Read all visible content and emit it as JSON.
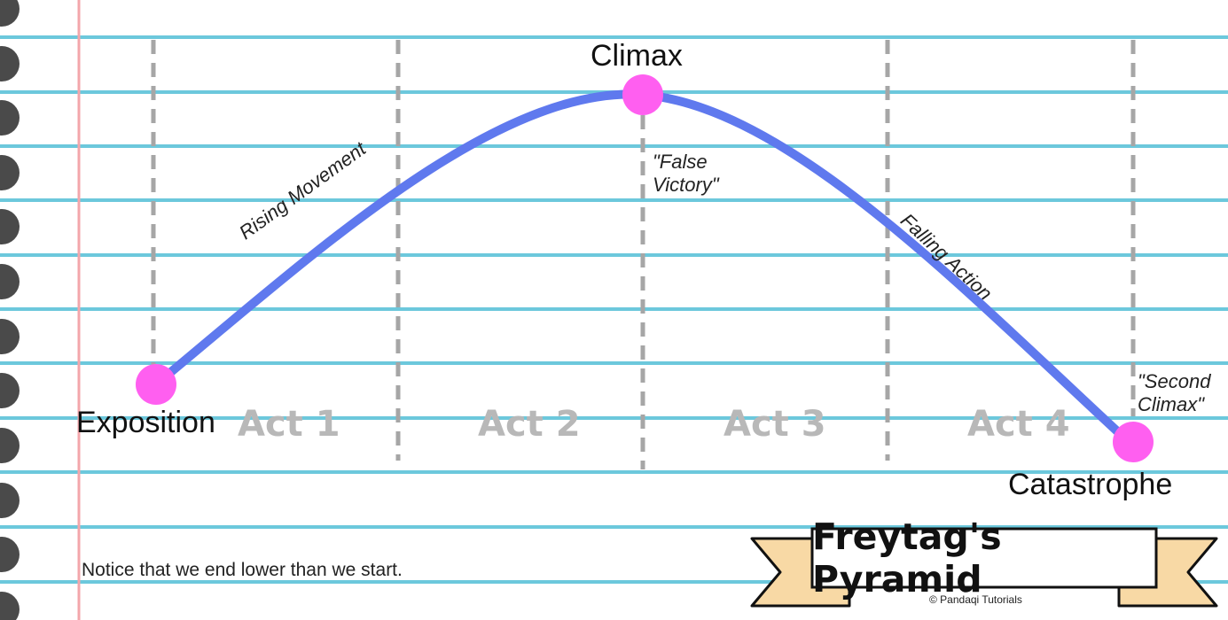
{
  "points": {
    "exposition": "Exposition",
    "climax": "Climax",
    "catastrophe": "Catastrophe"
  },
  "notes": {
    "false_victory": [
      "\"False",
      "Victory\""
    ],
    "second_climax": [
      "\"Second",
      "Climax\""
    ]
  },
  "curve_labels": {
    "rising": "Rising Movement",
    "falling": "Falling Action"
  },
  "acts": [
    "Act 1",
    "Act 2",
    "Act 3",
    "Act 4"
  ],
  "footer_note": "Notice that we end lower than we start.",
  "banner": {
    "title": "Freytag's Pyramid",
    "credit": "© Pandaqi Tutorials"
  },
  "colors": {
    "ruled_line": "#6cc8dc",
    "margin_line": "#f3a6ab",
    "curve": "#5f79ee",
    "point": "#ff5ff0",
    "divider": "#a6a6a6",
    "ribbon": "#f8d9a5",
    "binding_hole": "#4a4a4a"
  }
}
